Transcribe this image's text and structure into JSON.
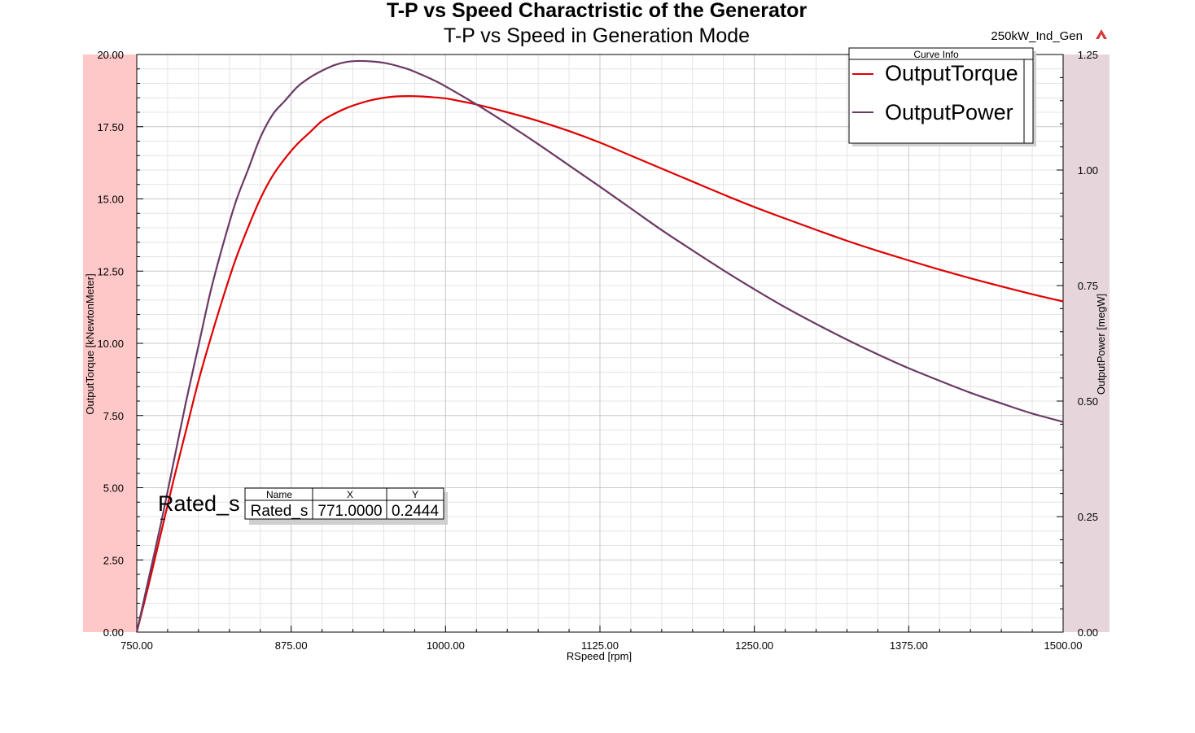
{
  "header": {
    "title": "T-P vs Speed Charactristic of the Generator",
    "subtitle": "T-P vs Speed in Generation Mode",
    "project": "250kW_Ind_Gen",
    "project_icon": "ansys-logo-icon"
  },
  "colors": {
    "torque": "#e00000",
    "power": "#6b3a64",
    "left_band": "#ffc8c8",
    "right_band": "#e6d6dc",
    "grid_major": "#c8c8c8",
    "grid_minor": "#e4e4e4"
  },
  "legend": {
    "title": "Curve Info",
    "placement": "top-right"
  },
  "marker": {
    "label": "Rated_s",
    "headers": [
      "Name",
      "X",
      "Y"
    ],
    "values": [
      "Rated_s",
      "771.0000",
      "0.2444"
    ],
    "x": 771,
    "y": 0.2444
  },
  "chart_data": {
    "type": "line",
    "grid": true,
    "xlabel": "RSpeed [rpm]",
    "ylabel_left": "OutputTorque [kNewtonMeter]",
    "ylabel_right": "OutputPower [megW]",
    "xlim": [
      750,
      1500
    ],
    "ylim_left": [
      0,
      20
    ],
    "ylim_right": [
      0,
      1.25
    ],
    "x_ticks": [
      "750.00",
      "875.00",
      "1000.00",
      "1125.00",
      "1250.00",
      "1375.00",
      "1500.00"
    ],
    "y_left_ticks": [
      "0.00",
      "2.50",
      "5.00",
      "7.50",
      "10.00",
      "12.50",
      "15.00",
      "17.50",
      "20.00"
    ],
    "y_right_ticks": [
      "0.00",
      "0.25",
      "0.50",
      "0.75",
      "1.00",
      "1.25"
    ],
    "series": [
      {
        "name": "OutputTorque",
        "axis": "left",
        "x": [
          750,
          760,
          770,
          780,
          790,
          800,
          810,
          820,
          830,
          840,
          850,
          860,
          870,
          880,
          890,
          900,
          910,
          920,
          930,
          940,
          950,
          960,
          970,
          980,
          990,
          1000,
          1010,
          1025,
          1050,
          1075,
          1100,
          1125,
          1150,
          1175,
          1200,
          1225,
          1250,
          1275,
          1300,
          1325,
          1350,
          1375,
          1400,
          1425,
          1450,
          1475,
          1500
        ],
        "values": [
          0.0,
          1.7,
          3.5,
          5.3,
          7.0,
          8.7,
          10.2,
          11.6,
          12.9,
          14.0,
          15.0,
          15.8,
          16.4,
          16.9,
          17.3,
          17.7,
          17.95,
          18.15,
          18.3,
          18.42,
          18.5,
          18.55,
          18.56,
          18.55,
          18.52,
          18.48,
          18.4,
          18.27,
          18.0,
          17.7,
          17.35,
          16.95,
          16.5,
          16.05,
          15.6,
          15.15,
          14.72,
          14.32,
          13.93,
          13.55,
          13.2,
          12.87,
          12.55,
          12.25,
          11.97,
          11.7,
          11.45
        ]
      },
      {
        "name": "OutputPower",
        "axis": "right",
        "x": [
          750,
          760,
          770,
          780,
          790,
          800,
          810,
          820,
          830,
          840,
          850,
          860,
          870,
          880,
          890,
          900,
          910,
          920,
          930,
          940,
          950,
          960,
          970,
          980,
          990,
          1000,
          1025,
          1050,
          1075,
          1100,
          1125,
          1150,
          1175,
          1200,
          1225,
          1250,
          1275,
          1300,
          1325,
          1350,
          1375,
          1400,
          1425,
          1450,
          1475,
          1500
        ],
        "values": [
          0.0,
          0.12,
          0.24,
          0.37,
          0.5,
          0.62,
          0.74,
          0.84,
          0.93,
          1.0,
          1.07,
          1.12,
          1.15,
          1.18,
          1.2,
          1.215,
          1.227,
          1.234,
          1.236,
          1.235,
          1.232,
          1.226,
          1.218,
          1.207,
          1.195,
          1.181,
          1.142,
          1.1,
          1.056,
          1.01,
          0.964,
          0.917,
          0.87,
          0.826,
          0.783,
          0.742,
          0.703,
          0.667,
          0.633,
          0.601,
          0.571,
          0.544,
          0.518,
          0.495,
          0.473,
          0.455
        ]
      }
    ]
  }
}
